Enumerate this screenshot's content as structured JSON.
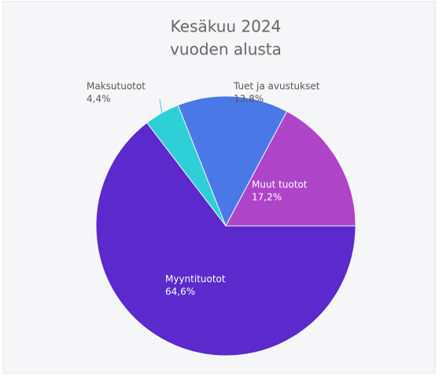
{
  "chart_data": {
    "type": "pie",
    "title": [
      "Kesäkuu 2024",
      "vuoden alusta"
    ],
    "categories": [
      "Myyntituotot",
      "Maksutuotot",
      "Tuet ja avustukset",
      "Muut tuotot"
    ],
    "values": [
      64.6,
      4.4,
      13.8,
      17.2
    ],
    "value_labels": [
      "64,6%",
      "4,4%",
      "13,8%",
      "17,2%"
    ],
    "colors": [
      "#5b29cc",
      "#2ecfd6",
      "#4a78e6",
      "#ae44c8"
    ]
  }
}
